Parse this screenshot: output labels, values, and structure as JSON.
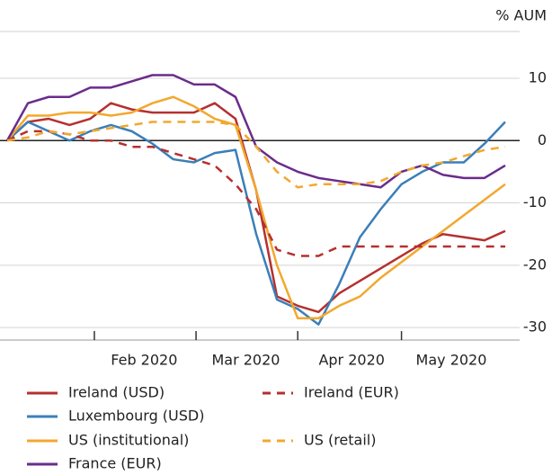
{
  "chart_data": {
    "type": "line",
    "y_unit_label": "% AUM",
    "x": [
      0,
      1,
      2,
      3,
      4,
      5,
      6,
      7,
      8,
      9,
      10,
      11,
      12,
      13,
      14,
      15,
      16,
      17,
      18,
      19,
      20,
      21,
      22,
      23,
      24
    ],
    "xlim": [
      0,
      24
    ],
    "xticks": [
      4.2,
      9.1,
      14,
      19
    ],
    "month_labels": [
      {
        "value": 6.6,
        "label": "Feb 2020"
      },
      {
        "value": 11.5,
        "label": "Mar 2020"
      },
      {
        "value": 16.6,
        "label": "Apr 2020"
      },
      {
        "value": 21.4,
        "label": "May 2020"
      }
    ],
    "ylim": [
      -32,
      17.5
    ],
    "yticks": [
      10,
      0,
      -10,
      -20,
      -30
    ],
    "grid": true,
    "series": [
      {
        "name": "Ireland (USD)",
        "color": "#b5302f",
        "dash": false,
        "values": [
          0,
          3,
          3.5,
          2.5,
          3.5,
          6,
          5,
          4.5,
          4.5,
          4.5,
          6,
          3.5,
          -8,
          -25,
          -26.5,
          -27.5,
          -24.5,
          -22.5,
          -20.5,
          -18.5,
          -16.5,
          -15,
          -15.5,
          -16,
          -14.5
        ]
      },
      {
        "name": "Luxembourg (USD)",
        "color": "#3b7fb8",
        "dash": false,
        "values": [
          0,
          3,
          1.5,
          0,
          1.5,
          2.5,
          1.5,
          -0.5,
          -3,
          -3.5,
          -2,
          -1.5,
          -15,
          -25.5,
          -27,
          -29.5,
          -23,
          -15.5,
          -11,
          -7,
          -5,
          -3.5,
          -3.5,
          -0.5,
          3
        ]
      },
      {
        "name": "US (institutional)",
        "color": "#f2a82e",
        "dash": false,
        "values": [
          0,
          4,
          4,
          4.5,
          4.5,
          4,
          4.5,
          6,
          7,
          5.5,
          3.5,
          2.5,
          -8,
          -20,
          -28.5,
          -28.5,
          -26.5,
          -25,
          -22,
          -19.5,
          -17,
          -14.5,
          -12,
          -9.5,
          -7
        ]
      },
      {
        "name": "France (EUR)",
        "color": "#6a2c8b",
        "dash": false,
        "values": [
          0,
          6,
          7,
          7,
          8.5,
          8.5,
          9.5,
          10.5,
          10.5,
          9,
          9,
          7,
          -1,
          -3.5,
          -5,
          -6,
          -6.5,
          -7,
          -7.5,
          -5,
          -4,
          -5.5,
          -6,
          -6,
          -4
        ]
      },
      {
        "name": "Ireland (EUR)",
        "color": "#b5302f",
        "dash": true,
        "values": [
          0,
          1.5,
          1.5,
          1,
          0,
          0,
          -1,
          -1,
          -2,
          -3,
          -4,
          -7,
          -11,
          -17.5,
          -18.5,
          -18.5,
          -17,
          -17,
          -17,
          -17,
          -17,
          -17,
          -17,
          -17,
          -17
        ]
      },
      {
        "name": "US (retail)",
        "color": "#f2a82e",
        "dash": true,
        "values": [
          0,
          0.5,
          1.5,
          1,
          1.5,
          2,
          2.5,
          3,
          3,
          3,
          3,
          2.5,
          -1,
          -5,
          -7.5,
          -7,
          -7,
          -7,
          -6.5,
          -5,
          -4,
          -3.5,
          -2.5,
          -1.5,
          -1
        ]
      }
    ]
  }
}
